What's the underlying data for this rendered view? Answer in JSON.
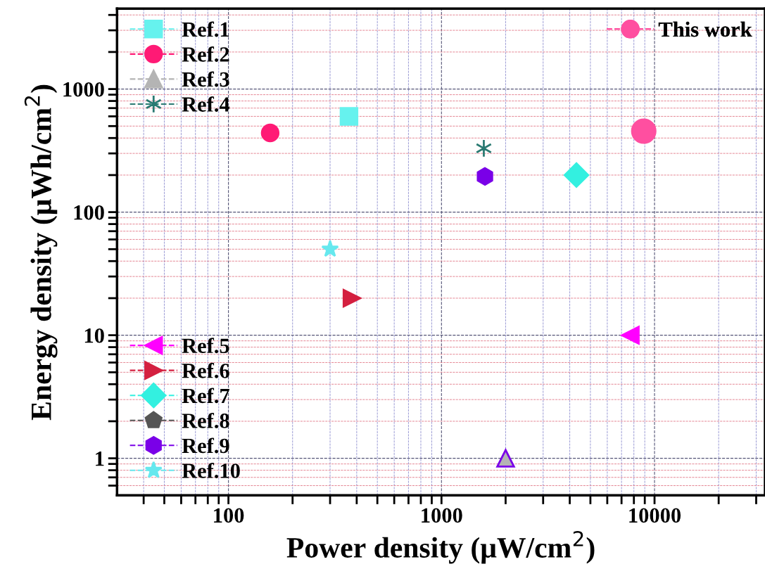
{
  "chart_data": {
    "type": "scatter",
    "xlabel": "Power density (μW/cm$^{2}$)",
    "ylabel": "Energy density (μWh/cm$^{2}$)",
    "log": "xy",
    "xlim": [
      30,
      33000
    ],
    "ylim": [
      0.5,
      4500
    ],
    "xticks": [
      {
        "value": 40,
        "label": null
      },
      {
        "value": 50,
        "label": null
      },
      {
        "value": 60,
        "label": null
      },
      {
        "value": 70,
        "label": null
      },
      {
        "value": 80,
        "label": null
      },
      {
        "value": 90,
        "label": null
      },
      100,
      {
        "value": 200,
        "label": null
      },
      {
        "value": 300,
        "label": null
      },
      {
        "value": 400,
        "label": null
      },
      {
        "value": 500,
        "label": null
      },
      {
        "value": 600,
        "label": null
      },
      {
        "value": 700,
        "label": null
      },
      {
        "value": 800,
        "label": null
      },
      {
        "value": 900,
        "label": null
      },
      1000,
      {
        "value": 2000,
        "label": null
      },
      {
        "value": 3000,
        "label": null
      },
      {
        "value": 4000,
        "label": null
      },
      {
        "value": 5000,
        "label": null
      },
      {
        "value": 6000,
        "label": null
      },
      {
        "value": 7000,
        "label": null
      },
      {
        "value": 8000,
        "label": null
      },
      {
        "value": 9000,
        "label": null
      },
      10000,
      {
        "value": 20000,
        "label": null
      },
      {
        "value": 30000,
        "label": null
      }
    ],
    "yticks": [
      {
        "value": 0.6,
        "label": null
      },
      {
        "value": 0.7,
        "label": null
      },
      {
        "value": 0.8,
        "label": null
      },
      {
        "value": 0.9,
        "label": null
      },
      1,
      {
        "value": 2,
        "label": null
      },
      {
        "value": 3,
        "label": null
      },
      {
        "value": 4,
        "label": null
      },
      {
        "value": 5,
        "label": null
      },
      {
        "value": 6,
        "label": null
      },
      {
        "value": 7,
        "label": null
      },
      {
        "value": 8,
        "label": null
      },
      {
        "value": 9,
        "label": null
      },
      10,
      {
        "value": 20,
        "label": null
      },
      {
        "value": 30,
        "label": null
      },
      {
        "value": 40,
        "label": null
      },
      {
        "value": 50,
        "label": null
      },
      {
        "value": 60,
        "label": null
      },
      {
        "value": 70,
        "label": null
      },
      {
        "value": 80,
        "label": null
      },
      {
        "value": 90,
        "label": null
      },
      100,
      {
        "value": 200,
        "label": null
      },
      {
        "value": 300,
        "label": null
      },
      {
        "value": 400,
        "label": null
      },
      {
        "value": 500,
        "label": null
      },
      {
        "value": 600,
        "label": null
      },
      {
        "value": 700,
        "label": null
      },
      {
        "value": 800,
        "label": null
      },
      {
        "value": 900,
        "label": null
      },
      1000,
      {
        "value": 2000,
        "label": null
      },
      {
        "value": 3000,
        "label": null
      },
      {
        "value": 4000,
        "label": null
      }
    ],
    "grid": true,
    "legend": "left",
    "series": [
      {
        "name": "Ref.1",
        "color": "#66f2ee",
        "marker": "square",
        "x": [
          368
        ],
        "values": [
          600
        ]
      },
      {
        "name": "Ref.2",
        "color": "#ff1a75",
        "marker": "circle",
        "x": [
          157
        ],
        "values": [
          440
        ]
      },
      {
        "name": "Ref.3",
        "color": "#b4b4b4",
        "marker": "triangle",
        "x": [
          2000
        ],
        "values": [
          1
        ]
      },
      {
        "name": "Ref.4",
        "color": "#2a7a72",
        "marker": "cross",
        "x": [
          1580
        ],
        "values": [
          330
        ]
      },
      {
        "name": "Ref.5",
        "color": "#ff00ff",
        "marker": "triangle_left",
        "x": [
          7700
        ],
        "values": [
          10
        ]
      },
      {
        "name": "Ref.6",
        "color": "#d42040",
        "marker": "triangle_right",
        "x": [
          380
        ],
        "values": [
          20
        ]
      },
      {
        "name": "Ref.7",
        "color": "#33f0e0",
        "marker": "diamond",
        "x": [
          4300
        ],
        "values": [
          200
        ]
      },
      {
        "name": "Ref.8",
        "color": "#555555",
        "marker": "pentagon"
      },
      {
        "name": "Ref.9",
        "color": "#7a00e8",
        "x": [
          1600
        ],
        "values": [
          195
        ]
      },
      {
        "name": "Ref.10",
        "color": "#66e8ee",
        "marker": "star",
        "x": [
          300
        ],
        "values": [
          50
        ]
      },
      {
        "name": "This work",
        "color": "#ff4fa0",
        "marker": "circle",
        "x": [
          8900
        ],
        "values": [
          455
        ]
      }
    ]
  }
}
